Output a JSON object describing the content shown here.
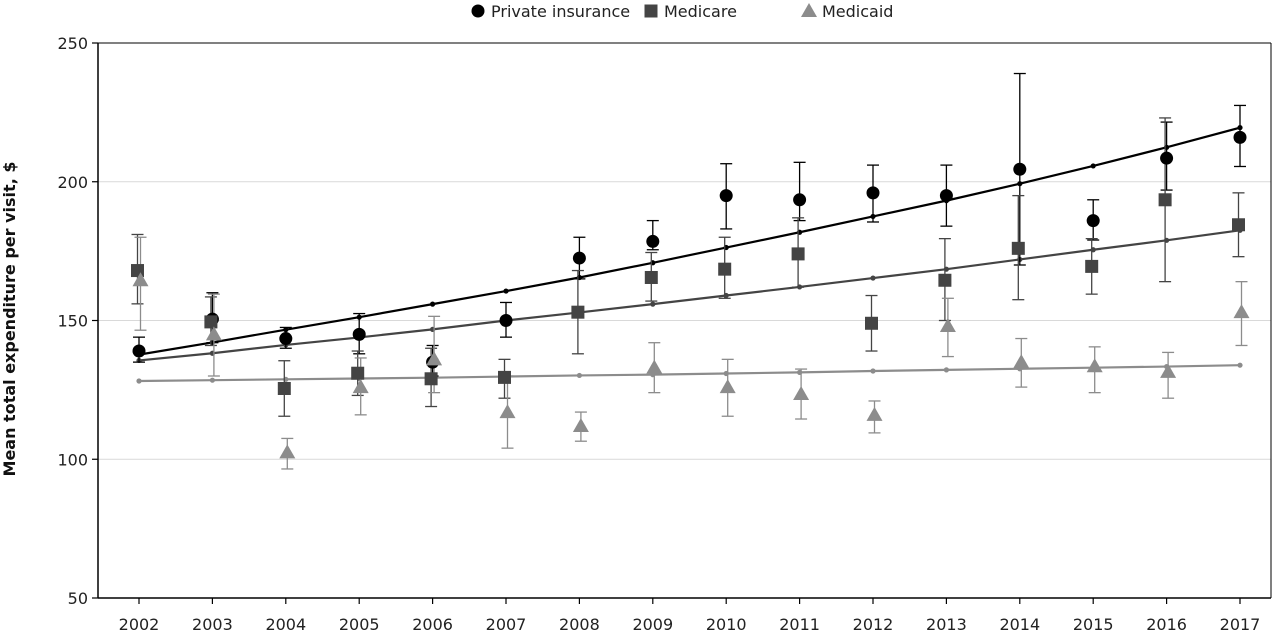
{
  "chart_data": {
    "type": "scatter",
    "title": "",
    "xlabel": "",
    "ylabel": "Mean total expenditure per visit, $",
    "ylim": [
      50,
      250
    ],
    "yticks": [
      "50",
      "100",
      "150",
      "200",
      "250"
    ],
    "years": [
      "2002",
      "2003",
      "2004",
      "2005",
      "2006",
      "2007",
      "2008",
      "2009",
      "2010",
      "2011",
      "2012",
      "2013",
      "2014",
      "2015",
      "2016",
      "2017"
    ],
    "grid": "horizontal at 100, 150, 200",
    "legend_position": "top-center",
    "series": [
      {
        "name": "Private insurance",
        "marker": "circle",
        "color": "#000000",
        "values": [
          139,
          150.5,
          143.5,
          145,
          135,
          150,
          172.5,
          178.5,
          195,
          193.5,
          196,
          195,
          204.5,
          186,
          208.5,
          216
        ],
        "ci_low": [
          135,
          142,
          140,
          138,
          130,
          144,
          165,
          175.5,
          183,
          186,
          185.5,
          184,
          170,
          179,
          197,
          205.5
        ],
        "ci_high": [
          144,
          160,
          147.5,
          152.5,
          141,
          156.5,
          180,
          186,
          206.5,
          207,
          206,
          206,
          239,
          193.5,
          221.5,
          227.5
        ],
        "trend": [
          137.7,
          142.1,
          146.7,
          151.2,
          155.9,
          160.6,
          165.5,
          170.8,
          176.3,
          181.8,
          187.5,
          193.2,
          199.3,
          205.7,
          212.4,
          219.5
        ]
      },
      {
        "name": "Medicare",
        "marker": "square",
        "color": "#444444",
        "values": [
          168,
          149.5,
          125.5,
          131,
          129,
          129.5,
          153,
          165.5,
          168.5,
          174,
          149,
          164.5,
          176,
          169.5,
          193.5,
          184.5
        ],
        "ci_low": [
          156,
          141,
          115.5,
          123,
          119,
          122,
          138,
          157,
          158,
          162,
          139,
          150,
          157.5,
          159.5,
          164,
          173
        ],
        "ci_high": [
          181,
          158.5,
          135.5,
          139,
          140,
          136,
          168,
          174.5,
          180,
          187,
          159,
          179.5,
          195,
          179.5,
          223,
          196
        ],
        "trend": [
          135.6,
          138.2,
          141.2,
          143.9,
          146.8,
          150,
          152.9,
          155.9,
          159,
          162.1,
          165.3,
          168.5,
          172,
          175.5,
          178.9,
          182.5
        ]
      },
      {
        "name": "Medicaid",
        "marker": "triangle",
        "color": "#8c8c8c",
        "values": [
          164.5,
          145,
          102.5,
          126,
          136,
          117,
          112,
          133,
          126,
          123.5,
          116,
          148,
          135,
          133.5,
          131.5,
          153
        ],
        "ci_low": [
          146.5,
          130,
          96.5,
          116,
          124,
          104,
          106.5,
          124,
          115.5,
          114.5,
          109.5,
          137,
          126,
          124,
          122,
          141
        ],
        "ci_high": [
          180,
          159.5,
          107.5,
          136.5,
          151.5,
          130,
          117,
          142,
          136,
          132.5,
          121,
          158,
          143.5,
          140.5,
          138.5,
          164
        ],
        "trend": [
          128.2,
          128.5,
          128.8,
          129.1,
          129.4,
          129.8,
          130.2,
          130.5,
          130.9,
          131.3,
          131.8,
          132.2,
          132.6,
          133,
          133.4,
          133.9
        ]
      }
    ]
  }
}
